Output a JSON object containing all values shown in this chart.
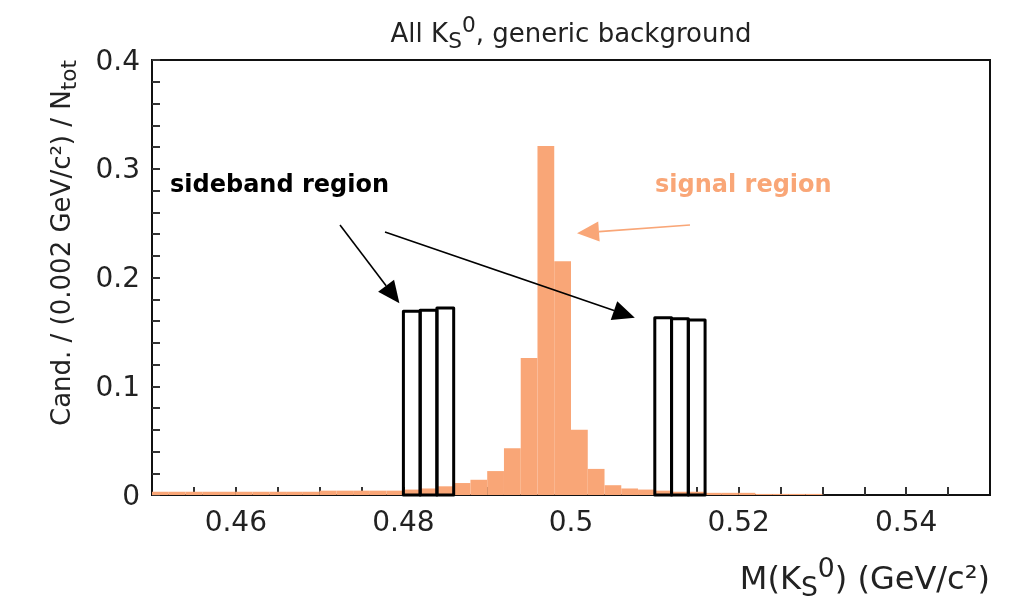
{
  "chart_data": {
    "type": "histogram",
    "title": "All K$_{S}$$^{0}$, generic background",
    "xlabel": "M(K$_{S}$$^{0}$) (GeV/c²)",
    "ylabel": "Cand. / (0.002 GeV/c²) / N$_{tot}$",
    "bins": [
      0.45,
      0.452,
      0.454,
      0.456,
      0.458,
      0.46,
      0.462,
      0.464,
      0.466,
      0.468,
      0.47,
      0.472,
      0.474,
      0.476,
      0.478,
      0.48,
      0.482,
      0.484,
      0.486,
      0.488,
      0.49,
      0.492,
      0.494,
      0.496,
      0.498,
      0.5,
      0.502,
      0.504,
      0.506,
      0.508,
      0.51,
      0.512,
      0.514,
      0.516,
      0.518,
      0.52,
      0.522,
      0.524,
      0.526,
      0.528,
      0.53,
      0.532,
      0.534,
      0.536,
      0.538,
      0.54,
      0.542,
      0.544,
      0.546,
      0.548,
      0.55
    ],
    "series": [
      {
        "name": "signal region",
        "color": "#f9a677",
        "values": [
          0.003,
          0.003,
          0.003,
          0.003,
          0.003,
          0.003,
          0.003,
          0.003,
          0.003,
          0.003,
          0.004,
          0.004,
          0.004,
          0.004,
          0.004,
          0.005,
          0.006,
          0.008,
          0.011,
          0.014,
          0.022,
          0.043,
          0.126,
          0.321,
          0.215,
          0.06,
          0.024,
          0.009,
          0.006,
          0.005,
          0.004,
          0.003,
          0.003,
          0.002,
          0.002,
          0.002,
          0.001,
          0.001,
          0.001,
          0.001,
          0,
          0,
          0,
          0,
          0,
          0,
          0,
          0,
          0,
          0
        ]
      },
      {
        "name": "sideband region",
        "type": "bar",
        "color": "#000000",
        "x": [
          0.481,
          0.483,
          0.485,
          0.511,
          0.513,
          0.515
        ],
        "values": [
          0.169,
          0.17,
          0.172,
          0.163,
          0.162,
          0.161
        ]
      }
    ],
    "xlim": [
      0.45,
      0.55
    ],
    "xticks": [
      {
        "value": 0.455,
        "label": null
      },
      0.46,
      {
        "value": 0.465,
        "label": null
      },
      {
        "value": 0.47,
        "label": null
      },
      {
        "value": 0.475,
        "label": null
      },
      0.48,
      {
        "value": 0.485,
        "label": null
      },
      {
        "value": 0.49,
        "label": null
      },
      {
        "value": 0.495,
        "label": null
      },
      0.5,
      {
        "value": 0.505,
        "label": null
      },
      {
        "value": 0.51,
        "label": null
      },
      {
        "value": 0.515,
        "label": null
      },
      0.52,
      {
        "value": 0.525,
        "label": null
      },
      {
        "value": 0.53,
        "label": null
      },
      {
        "value": 0.535,
        "label": null
      },
      0.54,
      {
        "value": 0.545,
        "label": null
      }
    ],
    "ylim": [
      0,
      0.4
    ],
    "yticks": [
      0,
      {
        "value": 0.02,
        "label": null
      },
      {
        "value": 0.04,
        "label": null
      },
      {
        "value": 0.06,
        "label": null
      },
      {
        "value": 0.08,
        "label": null
      },
      0.1,
      {
        "value": 0.12,
        "label": null
      },
      {
        "value": 0.14,
        "label": null
      },
      {
        "value": 0.16,
        "label": null
      },
      {
        "value": 0.18,
        "label": null
      },
      0.2,
      {
        "value": 0.22,
        "label": null
      },
      {
        "value": 0.24,
        "label": null
      },
      {
        "value": 0.26,
        "label": null
      },
      {
        "value": 0.28,
        "label": null
      },
      0.3,
      {
        "value": 0.32,
        "label": null
      },
      {
        "value": 0.34,
        "label": null
      },
      {
        "value": 0.36,
        "label": null
      },
      {
        "value": 0.38,
        "label": null
      },
      0.4
    ],
    "grid": false,
    "legend": false
  }
}
